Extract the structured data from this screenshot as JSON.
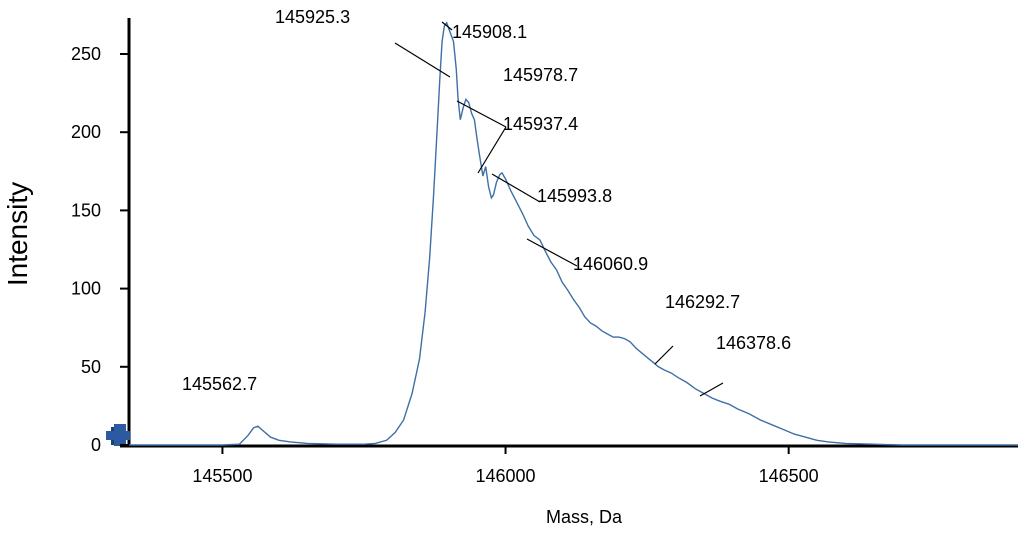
{
  "chart_data": {
    "type": "line",
    "title": "",
    "xlabel": "Mass, Da",
    "ylabel": "Intensity",
    "xlim": [
      145335,
      146905
    ],
    "ylim": [
      0,
      275
    ],
    "x_ticks": [
      145500,
      146000,
      146500
    ],
    "y_ticks": [
      0,
      50,
      100,
      150,
      200,
      250
    ],
    "grid": false,
    "legend": "none",
    "colors": {
      "line": "#3f6fa6",
      "axis": "#000000"
    },
    "series": [
      {
        "values": [
          [
            145335,
            0
          ],
          [
            145400,
            0
          ],
          [
            145450,
            0
          ],
          [
            145500,
            0
          ],
          [
            145530,
            0.5
          ],
          [
            145545,
            6
          ],
          [
            145555,
            11
          ],
          [
            145562.7,
            12
          ],
          [
            145572,
            9
          ],
          [
            145585,
            5
          ],
          [
            145600,
            3
          ],
          [
            145620,
            2
          ],
          [
            145650,
            1
          ],
          [
            145700,
            0.5
          ],
          [
            145750,
            0.5
          ],
          [
            145770,
            1
          ],
          [
            145790,
            3
          ],
          [
            145805,
            8
          ],
          [
            145820,
            16
          ],
          [
            145835,
            33
          ],
          [
            145848,
            55
          ],
          [
            145858,
            85
          ],
          [
            145866,
            120
          ],
          [
            145873,
            160
          ],
          [
            145879,
            200
          ],
          [
            145884,
            235
          ],
          [
            145888,
            258
          ],
          [
            145892,
            268
          ],
          [
            145896,
            270
          ],
          [
            145900,
            266
          ],
          [
            145904,
            262
          ],
          [
            145908.1,
            258
          ],
          [
            145913,
            240
          ],
          [
            145916,
            222
          ],
          [
            145920,
            208
          ],
          [
            145925.3,
            216
          ],
          [
            145930,
            221
          ],
          [
            145935,
            219
          ],
          [
            145940,
            212
          ],
          [
            145945,
            208
          ],
          [
            145950,
            195
          ],
          [
            145955,
            183
          ],
          [
            145960,
            172
          ],
          [
            145965,
            178
          ],
          [
            145970,
            165
          ],
          [
            145975,
            158
          ],
          [
            145978.7,
            160
          ],
          [
            145984,
            168
          ],
          [
            145990,
            173
          ],
          [
            145993.8,
            174
          ],
          [
            146000,
            170
          ],
          [
            146010,
            162
          ],
          [
            146020,
            155
          ],
          [
            146030,
            148
          ],
          [
            146040,
            140
          ],
          [
            146050,
            134
          ],
          [
            146060.9,
            131
          ],
          [
            146070,
            124
          ],
          [
            146080,
            117
          ],
          [
            146090,
            112
          ],
          [
            146100,
            104
          ],
          [
            146110,
            99
          ],
          [
            146120,
            93
          ],
          [
            146130,
            88
          ],
          [
            146140,
            82
          ],
          [
            146150,
            78
          ],
          [
            146160,
            76
          ],
          [
            146170,
            73
          ],
          [
            146180,
            71
          ],
          [
            146190,
            69
          ],
          [
            146200,
            69
          ],
          [
            146210,
            68
          ],
          [
            146220,
            66
          ],
          [
            146230,
            62
          ],
          [
            146240,
            59
          ],
          [
            146250,
            56
          ],
          [
            146260,
            53
          ],
          [
            146270,
            50
          ],
          [
            146280,
            48
          ],
          [
            146292.7,
            46
          ],
          [
            146305,
            43
          ],
          [
            146320,
            40
          ],
          [
            146335,
            36
          ],
          [
            146350,
            33
          ],
          [
            146365,
            30
          ],
          [
            146378.6,
            28
          ],
          [
            146395,
            26
          ],
          [
            146410,
            23
          ],
          [
            146430,
            20
          ],
          [
            146450,
            16
          ],
          [
            146470,
            13
          ],
          [
            146490,
            10
          ],
          [
            146510,
            7
          ],
          [
            146530,
            5
          ],
          [
            146550,
            3
          ],
          [
            146570,
            2
          ],
          [
            146600,
            1
          ],
          [
            146650,
            0.5
          ],
          [
            146700,
            0
          ],
          [
            146800,
            0
          ],
          [
            146905,
            0
          ]
        ]
      }
    ],
    "annotations": [
      {
        "text": "145562.7",
        "x": 145562.7,
        "y": 12
      },
      {
        "text": "145925.3",
        "x": 145925.3,
        "y": 216
      },
      {
        "text": "145908.1",
        "x": 145908.1,
        "y": 258
      },
      {
        "text": "145978.7",
        "x": 145978.7,
        "y": 160
      },
      {
        "text": "145937.4",
        "x": 145937.4,
        "y": 219
      },
      {
        "text": "145993.8",
        "x": 145993.8,
        "y": 174
      },
      {
        "text": "146060.9",
        "x": 146060.9,
        "y": 131
      },
      {
        "text": "146292.7",
        "x": 146292.7,
        "y": 46
      },
      {
        "text": "146378.6",
        "x": 146378.6,
        "y": 28
      }
    ]
  }
}
